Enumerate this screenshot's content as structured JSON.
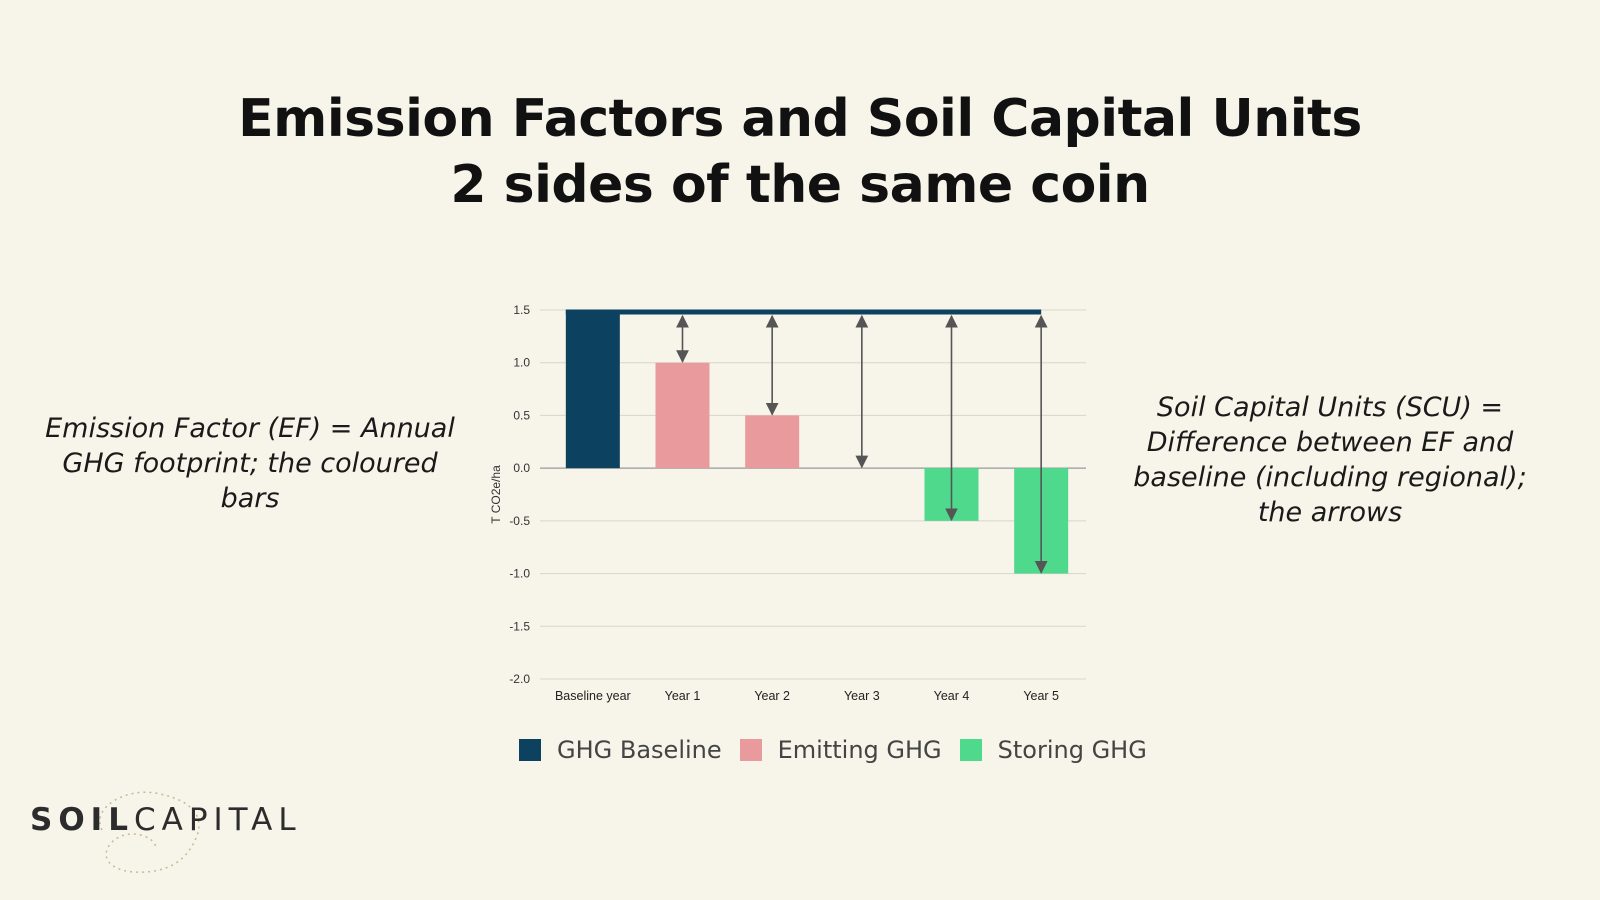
{
  "slide": {
    "title_line1": "Emission Factors and Soil Capital Units",
    "title_line2": "2 sides of the same coin",
    "left_note": "Emission Factor (EF) = Annual GHG footprint; the coloured bars",
    "right_note": "Soil Capital Units (SCU) = Difference between EF and baseline (including regional); the arrows"
  },
  "logo": {
    "part1": "SOIL",
    "part2": "CAPITAL"
  },
  "chart_data": {
    "type": "bar",
    "categories": [
      "Baseline year",
      "Year 1",
      "Year 2",
      "Year 3",
      "Year 4",
      "Year 5"
    ],
    "values": [
      1.5,
      1.0,
      0.5,
      0.0,
      -0.5,
      -1.0
    ],
    "bar_series": [
      "GHG Baseline",
      "Emitting GHG",
      "Emitting GHG",
      "Emitting GHG",
      "Storing GHG",
      "Storing GHG"
    ],
    "ylabel": "T CO2e/ha",
    "ylim": [
      -2.0,
      1.5
    ],
    "yticks": [
      "1.5",
      "1.0",
      "0.5",
      "0.0",
      "-0.5",
      "-1.0",
      "-1.5",
      "-2.0"
    ],
    "ytick_values": [
      1.5,
      1.0,
      0.5,
      0.0,
      -0.5,
      -1.0,
      -1.5,
      -2.0
    ],
    "baseline_value": 1.5,
    "arrows": [
      {
        "category": "Year 1",
        "from": 1.5,
        "to": 1.0
      },
      {
        "category": "Year 2",
        "from": 1.5,
        "to": 0.5
      },
      {
        "category": "Year 3",
        "from": 1.5,
        "to": 0.0
      },
      {
        "category": "Year 4",
        "from": 1.5,
        "to": -0.5
      },
      {
        "category": "Year 5",
        "from": 1.5,
        "to": -1.0
      }
    ],
    "legend": [
      {
        "name": "GHG Baseline",
        "color": "#0d4160"
      },
      {
        "name": "Emitting GHG",
        "color": "#e99a9c"
      },
      {
        "name": "Storing GHG",
        "color": "#4fd98d"
      }
    ],
    "legend_position": "bottom",
    "grid": true
  }
}
